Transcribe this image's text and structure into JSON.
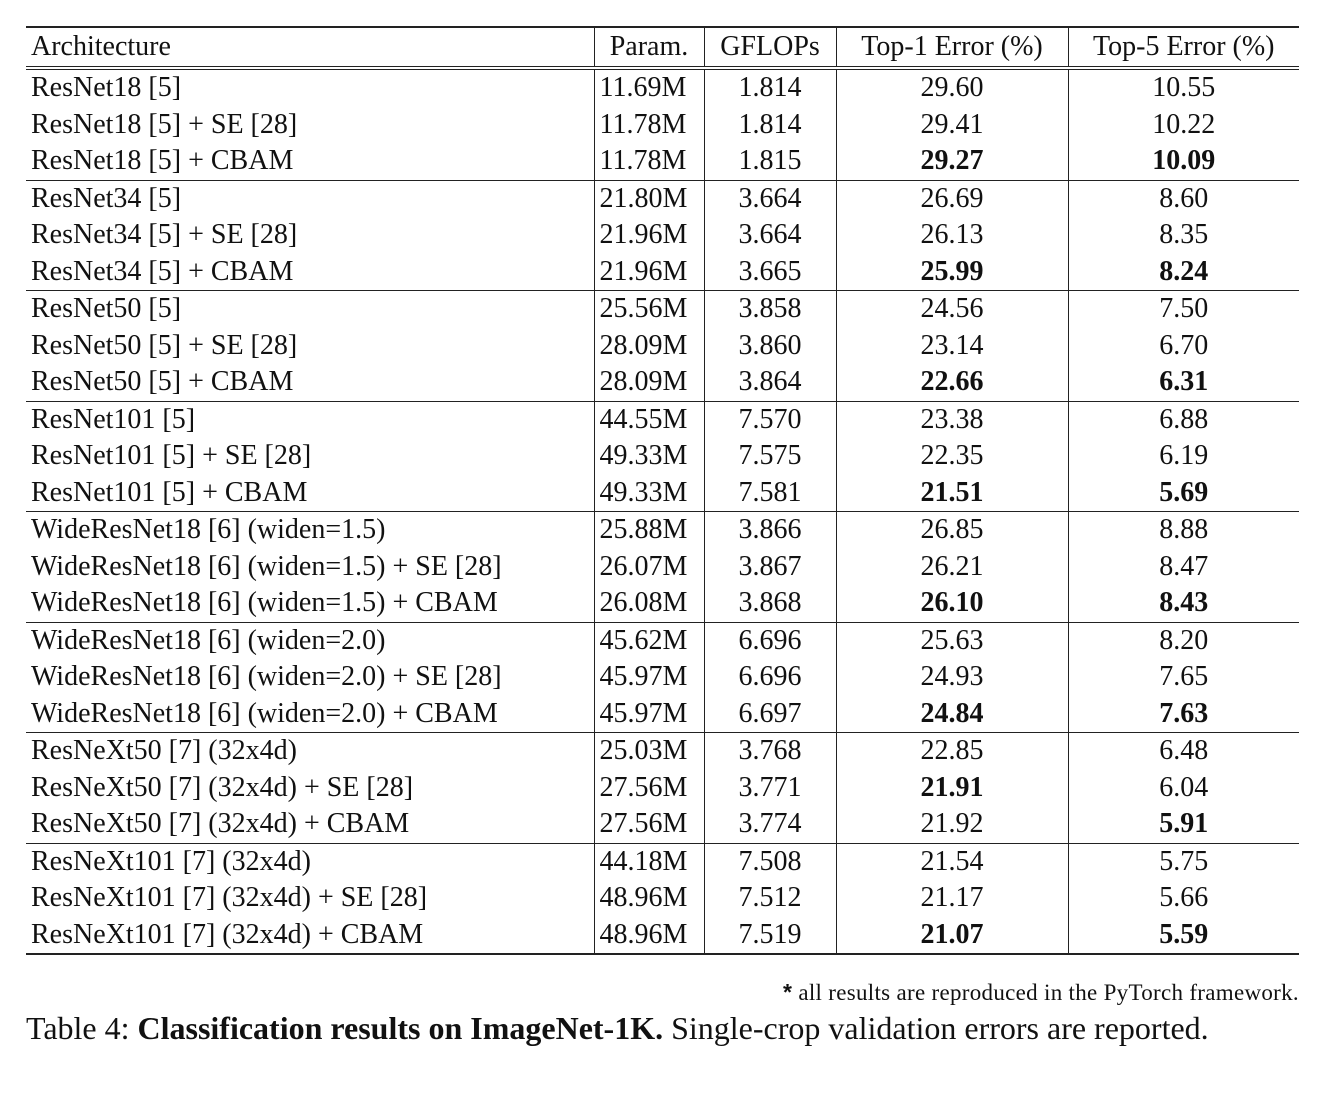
{
  "table": {
    "headers": [
      "Architecture",
      "Param.",
      "GFLOPs",
      "Top-1 Error (%)",
      "Top-5 Error (%)"
    ],
    "groups": [
      [
        {
          "arch": "ResNet18 [5]",
          "param": "11.69M",
          "gflops": "1.814",
          "top1": "29.60",
          "top5": "10.55",
          "top1_best": false,
          "top5_best": false
        },
        {
          "arch": "ResNet18 [5] + SE [28]",
          "param": "11.78M",
          "gflops": "1.814",
          "top1": "29.41",
          "top5": "10.22",
          "top1_best": false,
          "top5_best": false
        },
        {
          "arch": "ResNet18 [5] + CBAM",
          "param": "11.78M",
          "gflops": "1.815",
          "top1": "29.27",
          "top5": "10.09",
          "top1_best": true,
          "top5_best": true
        }
      ],
      [
        {
          "arch": "ResNet34 [5]",
          "param": "21.80M",
          "gflops": "3.664",
          "top1": "26.69",
          "top5": "8.60",
          "top1_best": false,
          "top5_best": false
        },
        {
          "arch": "ResNet34 [5] + SE [28]",
          "param": "21.96M",
          "gflops": "3.664",
          "top1": "26.13",
          "top5": "8.35",
          "top1_best": false,
          "top5_best": false
        },
        {
          "arch": "ResNet34 [5] + CBAM",
          "param": "21.96M",
          "gflops": "3.665",
          "top1": "25.99",
          "top5": "8.24",
          "top1_best": true,
          "top5_best": true
        }
      ],
      [
        {
          "arch": "ResNet50 [5]",
          "param": "25.56M",
          "gflops": "3.858",
          "top1": "24.56",
          "top5": "7.50",
          "top1_best": false,
          "top5_best": false
        },
        {
          "arch": "ResNet50 [5] + SE [28]",
          "param": "28.09M",
          "gflops": "3.860",
          "top1": "23.14",
          "top5": "6.70",
          "top1_best": false,
          "top5_best": false
        },
        {
          "arch": "ResNet50 [5] + CBAM",
          "param": "28.09M",
          "gflops": "3.864",
          "top1": "22.66",
          "top5": "6.31",
          "top1_best": true,
          "top5_best": true
        }
      ],
      [
        {
          "arch": "ResNet101 [5]",
          "param": "44.55M",
          "gflops": "7.570",
          "top1": "23.38",
          "top5": "6.88",
          "top1_best": false,
          "top5_best": false
        },
        {
          "arch": "ResNet101 [5] + SE [28]",
          "param": "49.33M",
          "gflops": "7.575",
          "top1": "22.35",
          "top5": "6.19",
          "top1_best": false,
          "top5_best": false
        },
        {
          "arch": "ResNet101 [5] + CBAM",
          "param": "49.33M",
          "gflops": "7.581",
          "top1": "21.51",
          "top5": "5.69",
          "top1_best": true,
          "top5_best": true
        }
      ],
      [
        {
          "arch": "WideResNet18 [6] (widen=1.5)",
          "param": "25.88M",
          "gflops": "3.866",
          "top1": "26.85",
          "top5": "8.88",
          "top1_best": false,
          "top5_best": false
        },
        {
          "arch": "WideResNet18 [6] (widen=1.5) + SE [28]",
          "param": "26.07M",
          "gflops": "3.867",
          "top1": "26.21",
          "top5": "8.47",
          "top1_best": false,
          "top5_best": false
        },
        {
          "arch": "WideResNet18 [6] (widen=1.5) + CBAM",
          "param": "26.08M",
          "gflops": "3.868",
          "top1": "26.10",
          "top5": "8.43",
          "top1_best": true,
          "top5_best": true
        }
      ],
      [
        {
          "arch": "WideResNet18 [6] (widen=2.0)",
          "param": "45.62M",
          "gflops": "6.696",
          "top1": "25.63",
          "top5": "8.20",
          "top1_best": false,
          "top5_best": false
        },
        {
          "arch": "WideResNet18 [6] (widen=2.0) + SE [28]",
          "param": "45.97M",
          "gflops": "6.696",
          "top1": "24.93",
          "top5": "7.65",
          "top1_best": false,
          "top5_best": false
        },
        {
          "arch": "WideResNet18 [6] (widen=2.0) + CBAM",
          "param": "45.97M",
          "gflops": "6.697",
          "top1": "24.84",
          "top5": "7.63",
          "top1_best": true,
          "top5_best": true
        }
      ],
      [
        {
          "arch": "ResNeXt50 [7] (32x4d)",
          "param": "25.03M",
          "gflops": "3.768",
          "top1": "22.85",
          "top5": "6.48",
          "top1_best": false,
          "top5_best": false
        },
        {
          "arch": "ResNeXt50 [7] (32x4d) + SE [28]",
          "param": "27.56M",
          "gflops": "3.771",
          "top1": "21.91",
          "top5": "6.04",
          "top1_best": true,
          "top5_best": false
        },
        {
          "arch": "ResNeXt50 [7] (32x4d) + CBAM",
          "param": "27.56M",
          "gflops": "3.774",
          "top1": "21.92",
          "top5": "5.91",
          "top1_best": false,
          "top5_best": true
        }
      ],
      [
        {
          "arch": "ResNeXt101 [7] (32x4d)",
          "param": "44.18M",
          "gflops": "7.508",
          "top1": "21.54",
          "top5": "5.75",
          "top1_best": false,
          "top5_best": false
        },
        {
          "arch": "ResNeXt101 [7] (32x4d) + SE [28]",
          "param": "48.96M",
          "gflops": "7.512",
          "top1": "21.17",
          "top5": "5.66",
          "top1_best": false,
          "top5_best": false
        },
        {
          "arch": "ResNeXt101 [7] (32x4d) + CBAM",
          "param": "48.96M",
          "gflops": "7.519",
          "top1": "21.07",
          "top5": "5.59",
          "top1_best": true,
          "top5_best": true
        }
      ]
    ]
  },
  "footnote": {
    "star": "*",
    "text": "all results are reproduced in the PyTorch framework."
  },
  "caption": {
    "label": "Table 4:",
    "title": "Classification results on ImageNet-1K.",
    "text": "Single-crop validation errors are reported."
  }
}
